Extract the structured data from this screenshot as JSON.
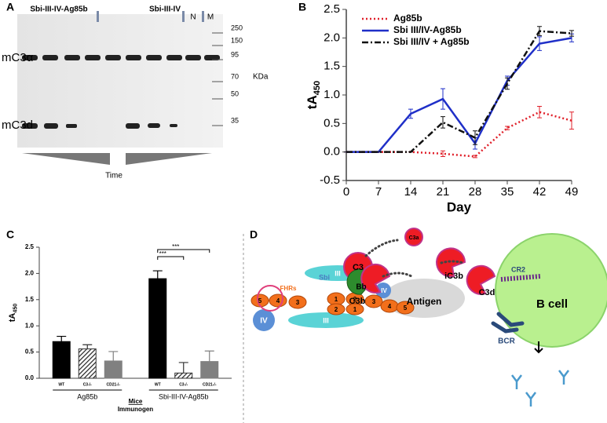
{
  "figure": {
    "panel_labels": [
      "A",
      "B",
      "C",
      "D"
    ]
  },
  "gel": {
    "lane_groups": [
      "Sbi-III-IV-Ag85b",
      "Sbi-III-IV",
      "N",
      "M"
    ],
    "bands": [
      "mC3α",
      "mC3d"
    ],
    "markers": [
      "250",
      "150",
      "95",
      "70",
      "50",
      "35"
    ],
    "unit": "KDa",
    "x_label": "Time"
  },
  "chart_data": [
    {
      "type": "line",
      "x_label": "Day",
      "y_label": "tA",
      "y_label_sub": "450",
      "x": [
        0,
        7,
        14,
        21,
        28,
        35,
        42,
        49
      ],
      "xlim": [
        0,
        49
      ],
      "xticks": [
        0,
        7,
        14,
        21,
        28,
        35,
        42,
        49
      ],
      "ylim": [
        -0.5,
        2.5
      ],
      "yticks": [
        -0.5,
        {
          "value": 0,
          "label": "0.0"
        },
        0.5,
        {
          "value": 1,
          "label": "1.0"
        },
        1.5,
        {
          "value": 2,
          "label": "2.0"
        },
        2.5
      ],
      "legend": "upper left",
      "series": [
        {
          "name": "Ag85b",
          "color": "#e0202a",
          "dash": "2,3",
          "values": [
            0,
            0,
            0,
            -0.03,
            -0.08,
            0.42,
            0.7,
            0.55
          ],
          "errors": [
            0,
            0,
            0,
            0.05,
            0.02,
            0.03,
            0.1,
            0.15
          ]
        },
        {
          "name": "Sbi III/IV-Ag85b",
          "color": "#1f2fc8",
          "dash": "none",
          "values": [
            0,
            0,
            0.67,
            0.93,
            0.15,
            1.25,
            1.9,
            2.0
          ],
          "errors": [
            0,
            0,
            0.08,
            0.18,
            0.1,
            0.08,
            0.12,
            0.07
          ]
        },
        {
          "name": "Sbi III/IV + Ag85b",
          "color": "#111111",
          "dash": "8,3,2,3",
          "values": [
            0,
            0,
            0,
            0.52,
            0.25,
            1.2,
            2.12,
            2.08
          ],
          "errors": [
            0,
            0,
            0,
            0.1,
            0.12,
            0.1,
            0.08,
            0.05
          ]
        }
      ]
    },
    {
      "type": "bar",
      "y_label": "tA",
      "y_label_sub": "450",
      "x_label": "Mice",
      "x_label_2": "Immunogen",
      "categories": [
        "Ag85b",
        "Sbi-III-IV-Ag85b"
      ],
      "ylim": [
        0,
        2.5
      ],
      "yticks": [
        {
          "value": 0,
          "label": "0.0"
        },
        0.5,
        {
          "value": 1,
          "label": "1.0"
        },
        1.5,
        {
          "value": 2,
          "label": "2.0"
        },
        2.5
      ],
      "significance": [
        "***",
        "***"
      ],
      "series": [
        {
          "name": "WT",
          "color": "#000000",
          "hatched": false,
          "values": [
            0.7,
            1.9
          ],
          "errors": [
            0.1,
            0.15
          ]
        },
        {
          "name": "C3-/-",
          "color": "#333333",
          "hatched": true,
          "values": [
            0.56,
            0.1
          ],
          "errors": [
            0.08,
            0.2
          ]
        },
        {
          "name": "CD21-/-",
          "color": "#808080",
          "hatched": false,
          "values": [
            0.33,
            0.32
          ],
          "errors": [
            0.18,
            0.2
          ]
        }
      ]
    }
  ],
  "diagram": {
    "labels": [
      "C3",
      "C3a",
      "C3b",
      "iC3b",
      "C3d",
      "CR2",
      "FHRs",
      "Sbi",
      "III",
      "III",
      "IV",
      "IV",
      "Bb",
      "Antigen",
      "B cell",
      "BCR",
      "5",
      "4",
      "3",
      "1",
      "2",
      "3",
      "4",
      "5",
      "2",
      "1"
    ]
  }
}
